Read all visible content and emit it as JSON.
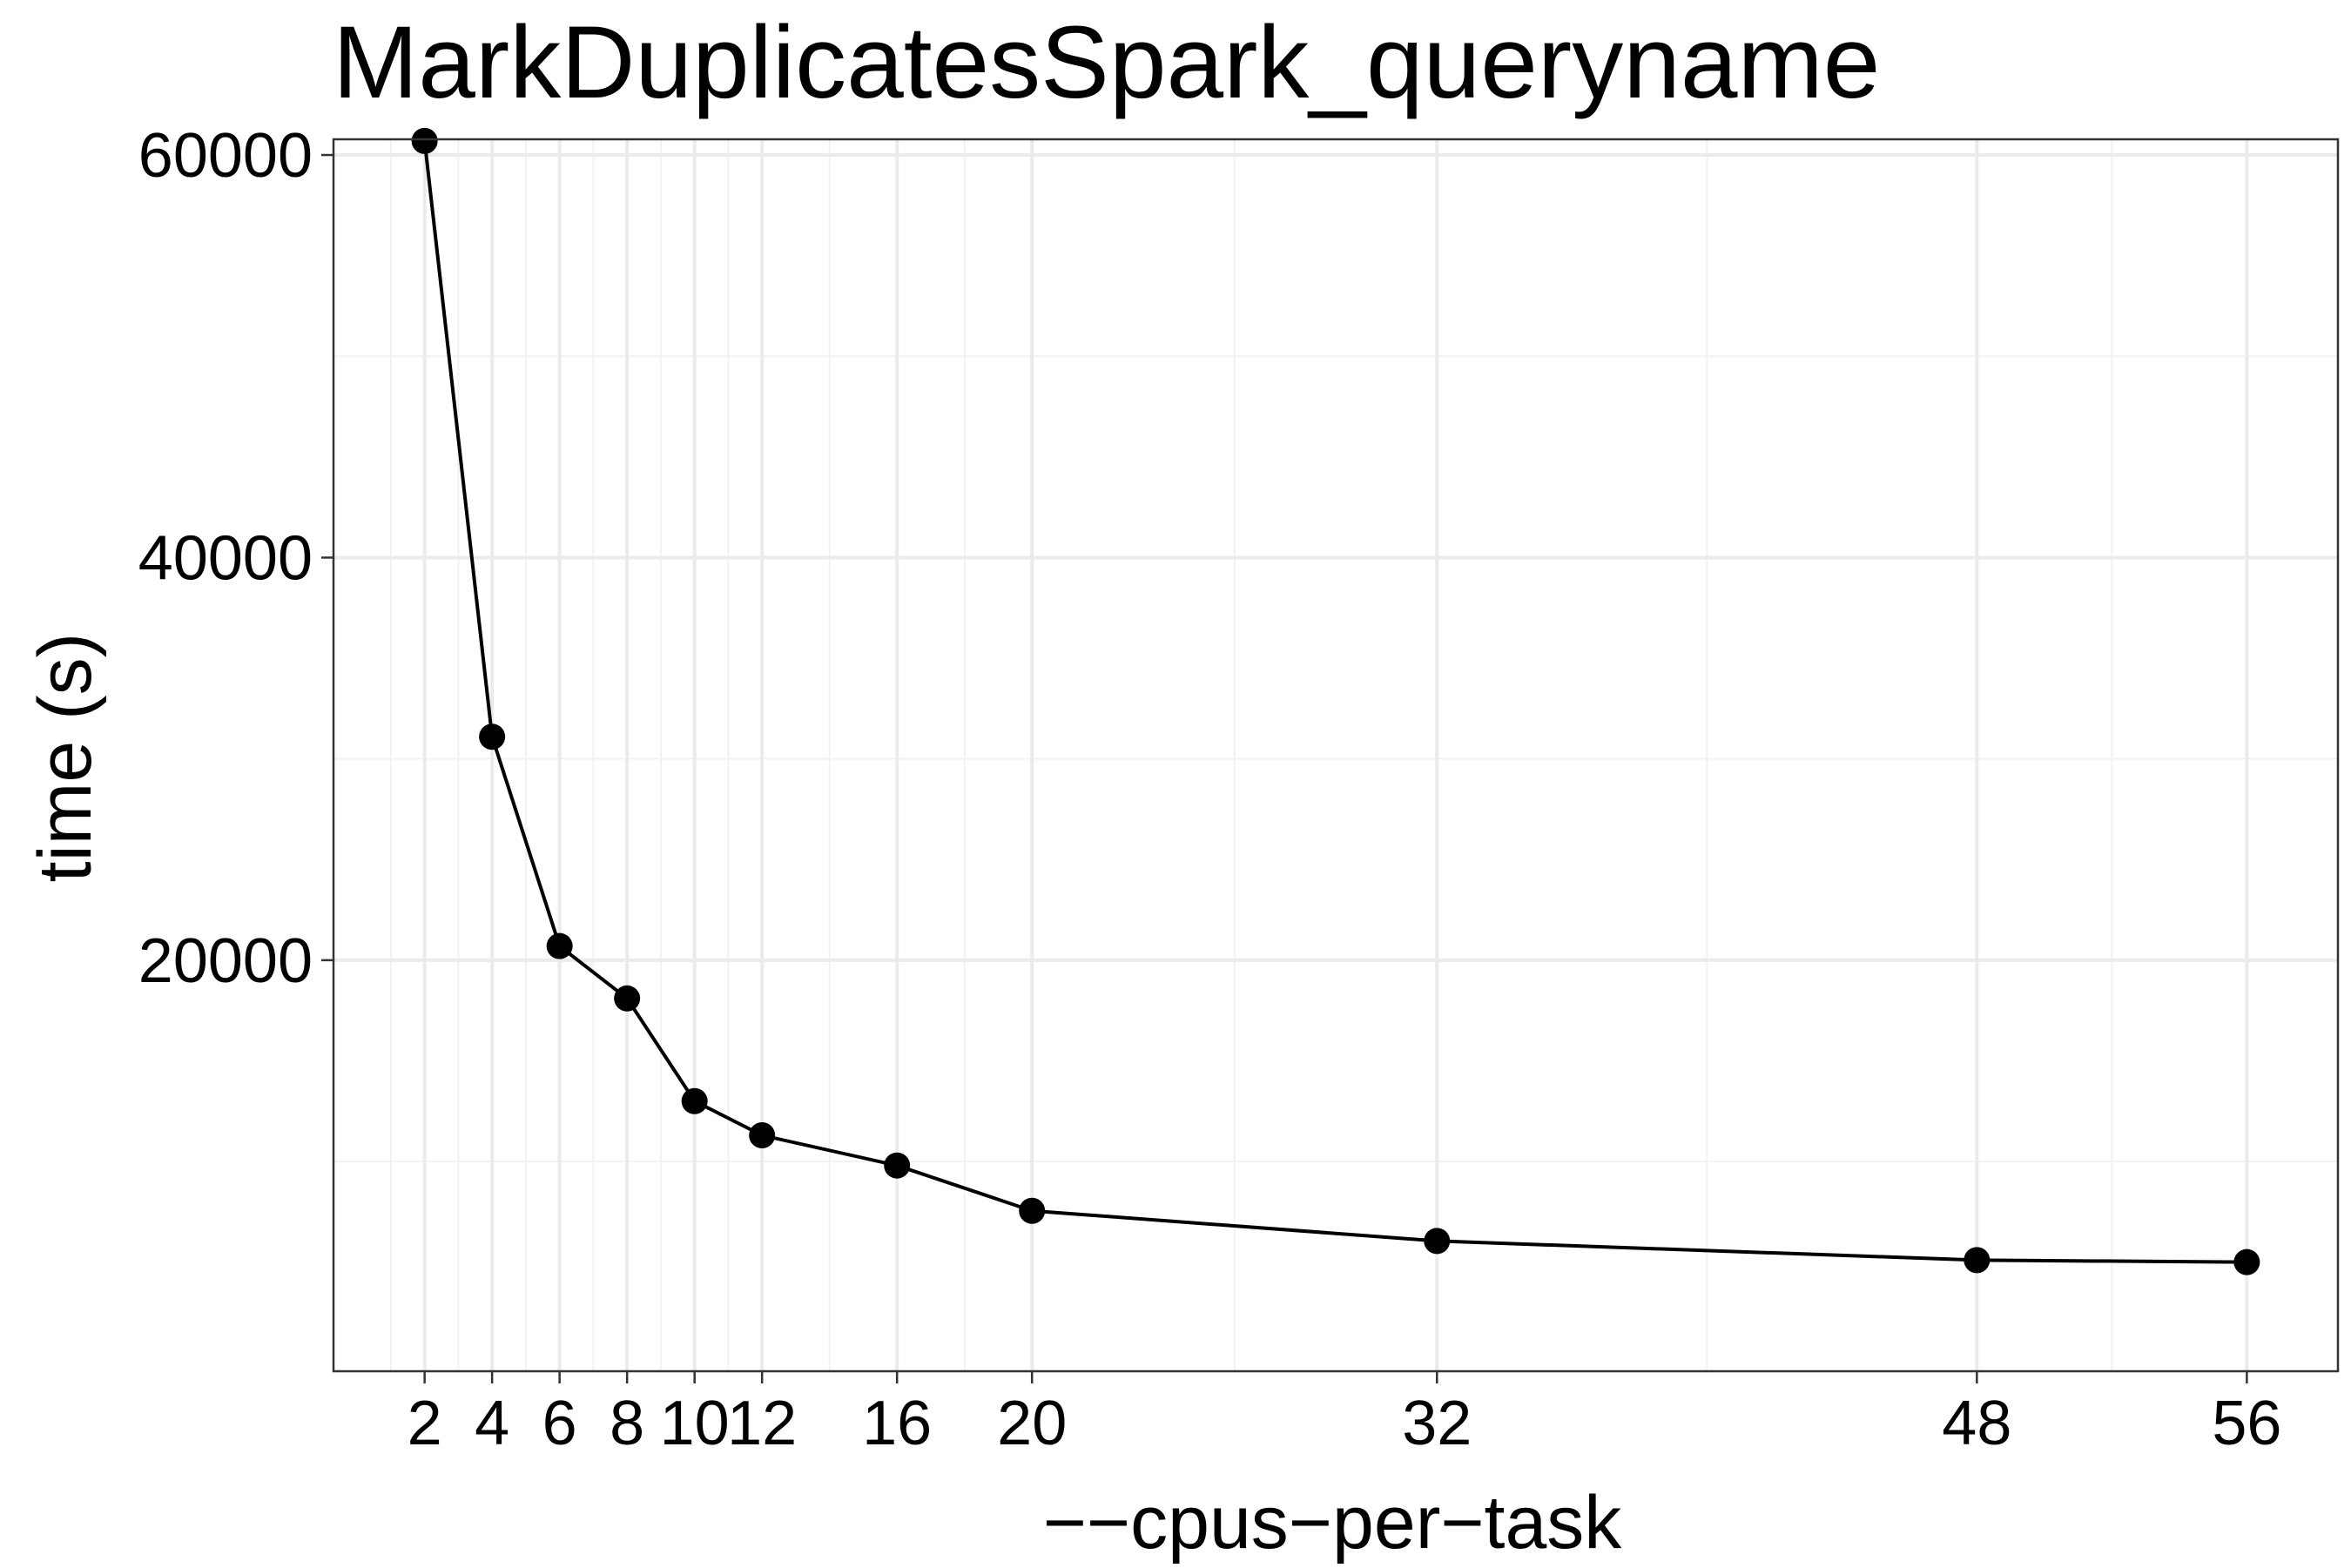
{
  "chart_data": {
    "type": "line",
    "title": "MarkDuplicatesSpark_queryname",
    "xlabel": "−−cpus−per−task",
    "ylabel": "time (s)",
    "x_ticks": [
      2,
      4,
      6,
      8,
      10,
      12,
      16,
      20,
      32,
      48,
      56
    ],
    "x_tick_labels": [
      "2",
      "4",
      "6",
      "8",
      "10",
      "12",
      "16",
      "20",
      "32",
      "48",
      "56"
    ],
    "y_ticks": [
      20000,
      40000,
      60000
    ],
    "y_tick_labels": [
      "20000",
      "40000",
      "60000"
    ],
    "xlim": [
      -0.7,
      58.7
    ],
    "ylim": [
      -420,
      60780
    ],
    "grid": true,
    "series": [
      {
        "x": [
          2,
          4,
          6,
          8,
          10,
          12,
          16,
          20,
          32,
          48,
          56
        ],
        "y": [
          60700,
          31100,
          20700,
          18100,
          13000,
          11300,
          9800,
          7550,
          6050,
          5100,
          5000
        ],
        "color": "#000000"
      }
    ]
  }
}
